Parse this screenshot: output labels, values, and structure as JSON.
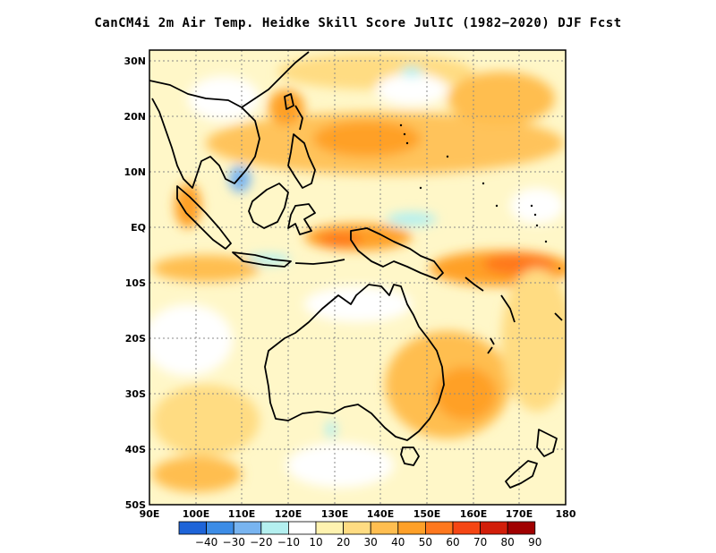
{
  "title": "CanCM4i  2m Air Temp. Heidke Skill Score JulIC (1982−2020) DJF Fcst",
  "map": {
    "lon_range": [
      90,
      180
    ],
    "lat_range": [
      -50,
      32
    ],
    "lon_ticks": [
      "90E",
      "100E",
      "110E",
      "120E",
      "130E",
      "140E",
      "150E",
      "160E",
      "170E",
      "180"
    ],
    "lat_ticks": [
      "30N",
      "20N",
      "10N",
      "EQ",
      "10S",
      "20S",
      "30S",
      "40S",
      "50S"
    ],
    "region_hint": "Maritime Continent / Australia"
  },
  "colorbar": {
    "labels": [
      "−40",
      "−30",
      "−20",
      "−10",
      "10",
      "20",
      "30",
      "40",
      "50",
      "60",
      "70",
      "80",
      "90"
    ],
    "colors": [
      "#1e64d8",
      "#3c8ce6",
      "#78b4f0",
      "#b4f0f0",
      "#ffffff",
      "#fff3b0",
      "#ffdc82",
      "#ffbe50",
      "#ffa028",
      "#ff781e",
      "#f54614",
      "#d21e0a",
      "#a00000"
    ]
  }
}
